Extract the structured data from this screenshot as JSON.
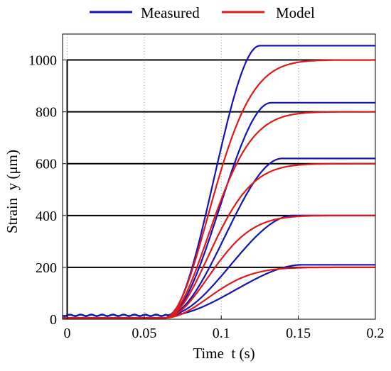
{
  "chart_data": {
    "type": "line",
    "title": "",
    "xlabel": "Time  t (s)",
    "ylabel": "Strain  y (μm)",
    "xlim": [
      -0.003,
      0.2
    ],
    "ylim": [
      0,
      1100
    ],
    "x_ticks": [
      0,
      0.05,
      0.1,
      0.15,
      0.2
    ],
    "x_tick_labels": [
      "0",
      "0.05",
      "0.1",
      "0.15",
      "0.2"
    ],
    "y_ticks": [
      0,
      200,
      400,
      600,
      800,
      1000
    ],
    "y_tick_labels": [
      "0",
      "200",
      "400",
      "600",
      "800",
      "1000"
    ],
    "grid": true,
    "legend_position": "top",
    "legend": [
      {
        "name": "Measured",
        "color": "#1414b4"
      },
      {
        "name": "Model",
        "color": "#e01a1a"
      }
    ],
    "reference": {
      "color": "#000000",
      "step_time": 0,
      "levels": [
        200,
        400,
        600,
        800,
        1000
      ]
    },
    "series": [
      {
        "name": "Measured",
        "color": "#1414b4",
        "final_values": [
          210,
          400,
          620,
          835,
          1055
        ],
        "onset_time": 0.065,
        "baseline": 15
      },
      {
        "name": "Model",
        "color": "#e01a1a",
        "final_values": [
          200,
          400,
          600,
          800,
          1000
        ],
        "onset_time": 0.063,
        "baseline": 5
      }
    ]
  }
}
